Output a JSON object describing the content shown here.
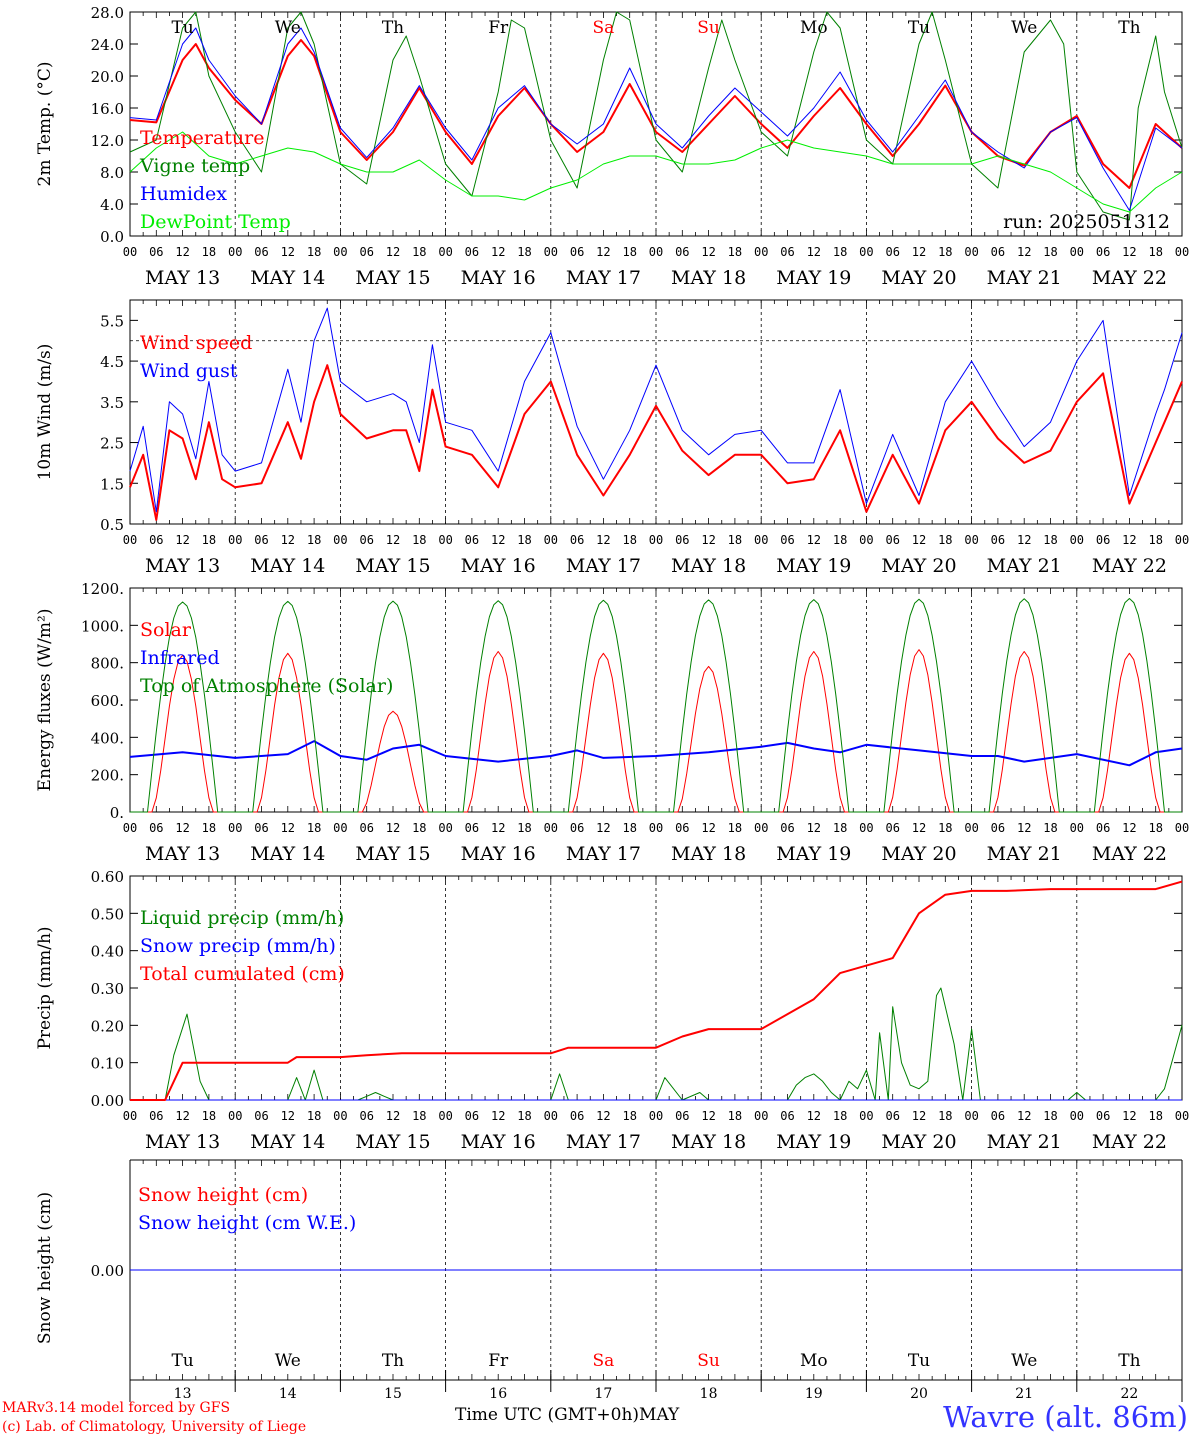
{
  "footer": {
    "model": "MARv3.14 model forced by GFS",
    "copyright": "(c) Lab. of Climatology, University of Liege",
    "xaxis_title": "Time UTC (GMT+0h)",
    "month": "MAY",
    "station": "Wavre (alt. 86m)",
    "run": "run: 2025051312"
  },
  "colors": {
    "red": "#ff0000",
    "green": "#008000",
    "blue": "#0000ff",
    "lime": "#00ee00",
    "station": "#3333ff"
  },
  "hour_labels": [
    "00",
    "06",
    "12",
    "18"
  ],
  "final_hour_label": "00",
  "date_labels": [
    "MAY 13",
    "MAY 14",
    "MAY 15",
    "MAY 16",
    "MAY 17",
    "MAY 18",
    "MAY 19",
    "MAY 20",
    "MAY 21",
    "MAY 22"
  ],
  "weekdays": [
    {
      "name": "Tu",
      "weekend": false
    },
    {
      "name": "We",
      "weekend": false
    },
    {
      "name": "Th",
      "weekend": false
    },
    {
      "name": "Fr",
      "weekend": false
    },
    {
      "name": "Sa",
      "weekend": true
    },
    {
      "name": "Su",
      "weekend": true
    },
    {
      "name": "Mo",
      "weekend": false
    },
    {
      "name": "Tu",
      "weekend": false
    },
    {
      "name": "We",
      "weekend": false
    },
    {
      "name": "Th",
      "weekend": false
    }
  ],
  "day_numbers": [
    "13",
    "14",
    "15",
    "16",
    "17",
    "18",
    "19",
    "20",
    "21",
    "22"
  ],
  "chart_data": [
    {
      "id": "temp",
      "type": "line",
      "ylabel": "2m Temp. (°C)",
      "ylim": [
        0,
        28
      ],
      "yticks": [
        "0.0",
        "4.0",
        "8.0",
        "12.0",
        "16.0",
        "20.0",
        "24.0",
        "28.0"
      ],
      "yticks_values": [
        0,
        4,
        8,
        12,
        16,
        20,
        24,
        28
      ],
      "xlim_hours": [
        0,
        240
      ],
      "series": [
        {
          "name": "Temperature",
          "color": "red",
          "width": 2,
          "x": [
            0,
            6,
            12,
            15,
            18,
            24,
            30,
            36,
            39,
            42,
            48,
            54,
            60,
            66,
            72,
            78,
            84,
            90,
            96,
            102,
            108,
            114,
            120,
            126,
            132,
            138,
            144,
            150,
            156,
            162,
            168,
            174,
            180,
            186,
            192,
            198,
            204,
            210,
            216,
            222,
            228,
            234,
            240
          ],
          "y": [
            14.5,
            14.2,
            22,
            24,
            21,
            17,
            14,
            22.5,
            24.5,
            22.5,
            13,
            9.5,
            13,
            18.5,
            13,
            9,
            15,
            18.5,
            14,
            10.5,
            13,
            19,
            13,
            10.5,
            14,
            17.5,
            14,
            11,
            15,
            18.5,
            14,
            10,
            14,
            18.8,
            13,
            10,
            8.8,
            13,
            15,
            9,
            6,
            14,
            11
          ]
        },
        {
          "name": "Vigne temp",
          "color": "green",
          "width": 1,
          "x": [
            0,
            6,
            12,
            15,
            18,
            24,
            30,
            36,
            39,
            42,
            48,
            54,
            60,
            63,
            66,
            72,
            78,
            84,
            87,
            90,
            96,
            102,
            108,
            111,
            114,
            120,
            126,
            132,
            135,
            138,
            144,
            150,
            156,
            159,
            162,
            168,
            174,
            180,
            183,
            186,
            192,
            198,
            204,
            210,
            213,
            216,
            222,
            228,
            230,
            234,
            236,
            240
          ],
          "y": [
            10.5,
            12,
            26,
            28,
            20,
            13,
            8,
            26,
            28,
            24,
            9,
            6.5,
            22,
            25,
            20,
            9,
            5,
            18,
            27,
            26,
            12,
            6,
            22,
            28,
            27,
            12,
            8,
            21,
            27,
            22,
            13,
            10,
            23,
            28,
            26,
            12,
            9,
            24,
            28,
            22,
            9,
            6,
            23,
            27,
            24,
            8,
            3,
            2,
            16,
            25,
            18,
            11
          ]
        },
        {
          "name": "Humidex",
          "color": "blue",
          "width": 1,
          "x": [
            0,
            6,
            12,
            15,
            18,
            24,
            30,
            36,
            39,
            42,
            48,
            54,
            60,
            66,
            72,
            78,
            84,
            90,
            96,
            102,
            108,
            114,
            120,
            126,
            132,
            138,
            144,
            150,
            156,
            162,
            168,
            174,
            180,
            186,
            192,
            198,
            204,
            210,
            216,
            222,
            228,
            234,
            240
          ],
          "y": [
            14.8,
            14.5,
            24,
            26,
            22,
            17.5,
            14,
            24,
            26,
            23,
            13.5,
            9.8,
            13.5,
            18.8,
            13.5,
            9.5,
            16,
            18.8,
            14,
            11.5,
            14,
            21,
            14,
            11,
            15,
            18.5,
            15.5,
            12.5,
            16,
            20.5,
            14.5,
            10.5,
            15,
            19.5,
            13,
            10.5,
            8.5,
            13,
            14.8,
            8.5,
            3.2,
            13.5,
            11
          ]
        },
        {
          "name": "DewPoint Temp",
          "color": "lime",
          "width": 1,
          "x": [
            0,
            6,
            12,
            18,
            24,
            30,
            36,
            42,
            48,
            54,
            60,
            66,
            72,
            78,
            84,
            90,
            96,
            102,
            108,
            114,
            120,
            126,
            132,
            138,
            144,
            150,
            156,
            162,
            168,
            174,
            180,
            186,
            192,
            198,
            204,
            210,
            216,
            222,
            228,
            234,
            240
          ],
          "y": [
            8,
            11,
            13,
            10,
            9,
            10,
            11,
            10.5,
            9,
            8,
            8,
            9.5,
            7,
            5,
            5,
            4.5,
            6,
            7,
            9,
            10,
            10,
            9,
            9,
            9.5,
            11,
            12,
            11,
            10.5,
            10,
            9,
            9,
            9,
            9,
            10,
            9,
            8,
            6,
            4,
            3,
            6,
            8
          ]
        }
      ]
    },
    {
      "id": "wind",
      "type": "line",
      "ylabel": "10m Wind (m/s)",
      "ylim": [
        0.5,
        6.0
      ],
      "yticks": [
        "0.5",
        "1.5",
        "2.5",
        "3.5",
        "4.5",
        "5.5"
      ],
      "yticks_values": [
        0.5,
        1.5,
        2.5,
        3.5,
        4.5,
        5.5
      ],
      "ref_line": 5.0,
      "series": [
        {
          "name": "Wind speed",
          "color": "red",
          "width": 2,
          "x": [
            0,
            3,
            6,
            9,
            12,
            15,
            18,
            21,
            24,
            30,
            36,
            39,
            42,
            45,
            48,
            54,
            60,
            63,
            66,
            69,
            72,
            78,
            84,
            90,
            96,
            102,
            108,
            114,
            120,
            126,
            132,
            138,
            144,
            150,
            156,
            162,
            168,
            174,
            180,
            186,
            192,
            198,
            204,
            210,
            216,
            222,
            228,
            234,
            236,
            240
          ],
          "y": [
            1.4,
            2.2,
            0.6,
            2.8,
            2.6,
            1.6,
            3.0,
            1.6,
            1.4,
            1.5,
            3.0,
            2.1,
            3.5,
            4.4,
            3.2,
            2.6,
            2.8,
            2.8,
            1.8,
            3.8,
            2.4,
            2.2,
            1.4,
            3.2,
            4.0,
            2.2,
            1.2,
            2.2,
            3.4,
            2.3,
            1.7,
            2.2,
            2.2,
            1.5,
            1.6,
            2.8,
            0.8,
            2.2,
            1.0,
            2.8,
            3.5,
            2.6,
            2.0,
            2.3,
            3.5,
            4.2,
            1.0,
            2.5,
            3.0,
            4.0
          ]
        },
        {
          "name": "Wind gust",
          "color": "blue",
          "width": 1,
          "x": [
            0,
            3,
            6,
            9,
            12,
            15,
            18,
            21,
            24,
            30,
            36,
            39,
            42,
            45,
            48,
            54,
            60,
            63,
            66,
            69,
            72,
            78,
            84,
            90,
            96,
            102,
            108,
            114,
            120,
            126,
            132,
            138,
            144,
            150,
            156,
            162,
            168,
            174,
            180,
            186,
            192,
            198,
            204,
            210,
            216,
            222,
            228,
            234,
            236,
            240
          ],
          "y": [
            1.8,
            2.9,
            0.8,
            3.5,
            3.2,
            2.1,
            4.0,
            2.2,
            1.8,
            2.0,
            4.3,
            3.0,
            5.0,
            5.8,
            4.0,
            3.5,
            3.7,
            3.5,
            2.5,
            4.9,
            3.0,
            2.8,
            1.8,
            4.0,
            5.2,
            2.9,
            1.6,
            2.8,
            4.4,
            2.8,
            2.2,
            2.7,
            2.8,
            2.0,
            2.0,
            3.8,
            1.0,
            2.7,
            1.2,
            3.5,
            4.5,
            3.4,
            2.4,
            3.0,
            4.5,
            5.5,
            1.2,
            3.2,
            3.8,
            5.2
          ]
        }
      ]
    },
    {
      "id": "flux",
      "type": "line",
      "ylabel": "Energy fluxes (W/m²)",
      "ylim": [
        0,
        1200
      ],
      "yticks": [
        "0.",
        "200.",
        "400.",
        "600.",
        "800.",
        "1000.",
        "1200."
      ],
      "yticks_values": [
        0,
        200,
        400,
        600,
        800,
        1000,
        1200
      ],
      "series": [
        {
          "name": "Solar",
          "color": "red",
          "width": 1,
          "daily_peak": [
            840,
            850,
            540,
            860,
            850,
            780,
            860,
            870,
            860,
            850
          ]
        },
        {
          "name": "Infrared",
          "color": "blue",
          "width": 2,
          "x": [
            0,
            12,
            24,
            36,
            42,
            48,
            54,
            60,
            66,
            72,
            84,
            96,
            102,
            108,
            120,
            132,
            144,
            150,
            156,
            162,
            168,
            180,
            192,
            198,
            204,
            216,
            228,
            234,
            240
          ],
          "y": [
            295,
            320,
            290,
            310,
            380,
            300,
            280,
            340,
            360,
            300,
            270,
            300,
            330,
            290,
            300,
            320,
            350,
            370,
            340,
            320,
            360,
            330,
            300,
            300,
            270,
            310,
            250,
            320,
            340
          ]
        },
        {
          "name": "Top of Atmosphere (Solar)",
          "color": "green",
          "width": 1,
          "daily_peak": [
            1125,
            1128,
            1130,
            1132,
            1134,
            1136,
            1138,
            1140,
            1142,
            1144
          ]
        }
      ]
    },
    {
      "id": "precip",
      "type": "line",
      "ylabel": "Precip (mm/h)",
      "ylim": [
        0,
        0.6
      ],
      "yticks": [
        "0.00",
        "0.10",
        "0.20",
        "0.30",
        "0.40",
        "0.50",
        "0.60"
      ],
      "yticks_values": [
        0,
        0.1,
        0.2,
        0.3,
        0.4,
        0.5,
        0.6
      ],
      "series": [
        {
          "name": "Liquid precip (mm/h)",
          "color": "green",
          "width": 1,
          "x": [
            0,
            8,
            10,
            13,
            16,
            18,
            30,
            36,
            38,
            40,
            42,
            44,
            52,
            54,
            56,
            58,
            60,
            66,
            92,
            96,
            98,
            100,
            120,
            122,
            126,
            130,
            132,
            150,
            152,
            154,
            156,
            158,
            160,
            162,
            164,
            166,
            168,
            170,
            171,
            173,
            174,
            176,
            178,
            180,
            182,
            184,
            185,
            188,
            190,
            192,
            194,
            196,
            214,
            216,
            218,
            234,
            236,
            240
          ],
          "y": [
            0,
            0,
            0.12,
            0.23,
            0.05,
            0,
            0,
            0,
            0.06,
            0,
            0.08,
            0,
            0,
            0.01,
            0.02,
            0.01,
            0,
            0,
            0,
            0,
            0.07,
            0,
            0,
            0.06,
            0,
            0.02,
            0,
            0,
            0.04,
            0.06,
            0.07,
            0.05,
            0.02,
            0,
            0.05,
            0.03,
            0.08,
            0,
            0.18,
            0,
            0.25,
            0.1,
            0.04,
            0.03,
            0.05,
            0.28,
            0.3,
            0.15,
            0,
            0.19,
            0,
            0,
            0,
            0.02,
            0,
            0,
            0.03,
            0.2
          ]
        },
        {
          "name": "Snow precip (mm/h)",
          "color": "blue",
          "width": 1,
          "x": [
            0,
            240
          ],
          "y": [
            0,
            0
          ]
        },
        {
          "name": "Total cumulated (cm)",
          "color": "red",
          "width": 2,
          "x": [
            0,
            8,
            12,
            18,
            36,
            38,
            48,
            54,
            62,
            72,
            96,
            100,
            108,
            120,
            126,
            132,
            144,
            156,
            162,
            168,
            174,
            180,
            186,
            192,
            200,
            210,
            216,
            234,
            240
          ],
          "y": [
            0,
            0,
            0.1,
            0.1,
            0.1,
            0.115,
            0.115,
            0.12,
            0.125,
            0.125,
            0.125,
            0.14,
            0.14,
            0.14,
            0.17,
            0.19,
            0.19,
            0.27,
            0.34,
            0.36,
            0.38,
            0.5,
            0.55,
            0.56,
            0.56,
            0.565,
            0.565,
            0.565,
            0.585
          ]
        }
      ]
    },
    {
      "id": "snow",
      "type": "line",
      "ylabel": "Snow height (cm)",
      "ylim": [
        -1,
        1
      ],
      "yticks": [
        "0.00"
      ],
      "yticks_values": [
        0
      ],
      "series": [
        {
          "name": "Snow height (cm)",
          "color": "red",
          "width": 1,
          "x": [
            0,
            240
          ],
          "y": [
            0,
            0
          ]
        },
        {
          "name": "Snow height (cm W.E.)",
          "color": "blue",
          "width": 1,
          "x": [
            0,
            240
          ],
          "y": [
            0,
            0
          ]
        }
      ]
    }
  ]
}
